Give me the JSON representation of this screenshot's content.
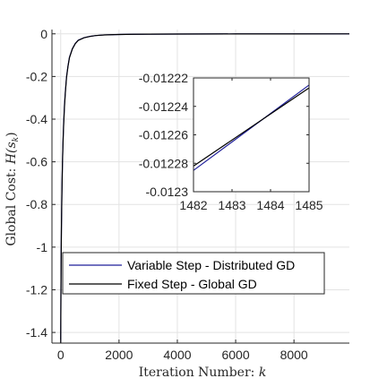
{
  "chart_data": [
    {
      "type": "line",
      "title": "",
      "xlabel": "Iteration Number: ",
      "xlabel_var": "k",
      "ylabel": "Global Cost: ",
      "ylabel_var": "H(s",
      "ylabel_sub": "k",
      "ylabel_close": ")",
      "xlim": [
        -300,
        9900
      ],
      "ylim": [
        -1.45,
        0.02
      ],
      "xticks": [
        0,
        2000,
        4000,
        6000,
        8000
      ],
      "yticks": [
        0,
        -0.2,
        -0.4,
        -0.6,
        -0.8,
        -1,
        -1.2,
        -1.4
      ],
      "xtick_labels": [
        "0",
        "2000",
        "4000",
        "6000",
        "8000"
      ],
      "ytick_labels": [
        "0",
        "-0.2",
        "-0.4",
        "-0.6",
        "-0.8",
        "-1",
        "-1.2",
        "-1.4"
      ],
      "grid": true,
      "legend_position": "bottom-left",
      "series": [
        {
          "name": "Variable Step - Distributed GD",
          "color": "#1f1f9a",
          "x": [
            0,
            8,
            15,
            25,
            40,
            60,
            80,
            100,
            130,
            160,
            200,
            250,
            300,
            400,
            500,
            600,
            800,
            1000,
            1200,
            1500,
            2000,
            2500,
            3000,
            4000,
            6000,
            8000,
            9900
          ],
          "y": [
            -1.45,
            -1.2,
            -1.05,
            -0.9,
            -0.75,
            -0.6,
            -0.5,
            -0.42,
            -0.33,
            -0.27,
            -0.2,
            -0.15,
            -0.11,
            -0.07,
            -0.045,
            -0.03,
            -0.018,
            -0.012,
            -0.008,
            -0.005,
            -0.003,
            -0.002,
            -0.0015,
            -0.001,
            -0.0006,
            -0.0004,
            -0.0003
          ]
        },
        {
          "name": "Fixed Step - Global GD",
          "color": "#000000",
          "x": [
            0,
            8,
            15,
            25,
            40,
            60,
            80,
            100,
            130,
            160,
            200,
            250,
            300,
            400,
            500,
            600,
            800,
            1000,
            1200,
            1500,
            2000,
            2500,
            3000,
            4000,
            6000,
            8000,
            9900
          ],
          "y": [
            -1.45,
            -1.21,
            -1.06,
            -0.91,
            -0.76,
            -0.61,
            -0.51,
            -0.43,
            -0.34,
            -0.275,
            -0.205,
            -0.153,
            -0.112,
            -0.071,
            -0.046,
            -0.031,
            -0.0185,
            -0.0123,
            -0.0082,
            -0.0051,
            -0.0031,
            -0.002,
            -0.0015,
            -0.001,
            -0.0006,
            -0.0004,
            -0.0003
          ]
        }
      ]
    },
    {
      "type": "line",
      "title": "",
      "inset": true,
      "xlim": [
        1482,
        1485
      ],
      "ylim": [
        -0.0123,
        -0.01222
      ],
      "xticks": [
        1482,
        1483,
        1484,
        1485
      ],
      "yticks": [
        -0.01222,
        -0.01224,
        -0.01226,
        -0.01228,
        -0.0123
      ],
      "xtick_labels": [
        "1482",
        "1483",
        "1484",
        "1485"
      ],
      "ytick_labels": [
        "-0.01222",
        "-0.01224",
        "-0.01226",
        "-0.01228",
        "-0.0123"
      ],
      "grid": false,
      "series": [
        {
          "name": "Variable Step - Distributed GD",
          "color": "#1f1f9a",
          "x": [
            1482,
            1485
          ],
          "y": [
            -0.012285,
            -0.012225
          ]
        },
        {
          "name": "Fixed Step - Global GD",
          "color": "#000000",
          "x": [
            1482,
            1485
          ],
          "y": [
            -0.012282,
            -0.012227
          ]
        }
      ]
    }
  ]
}
